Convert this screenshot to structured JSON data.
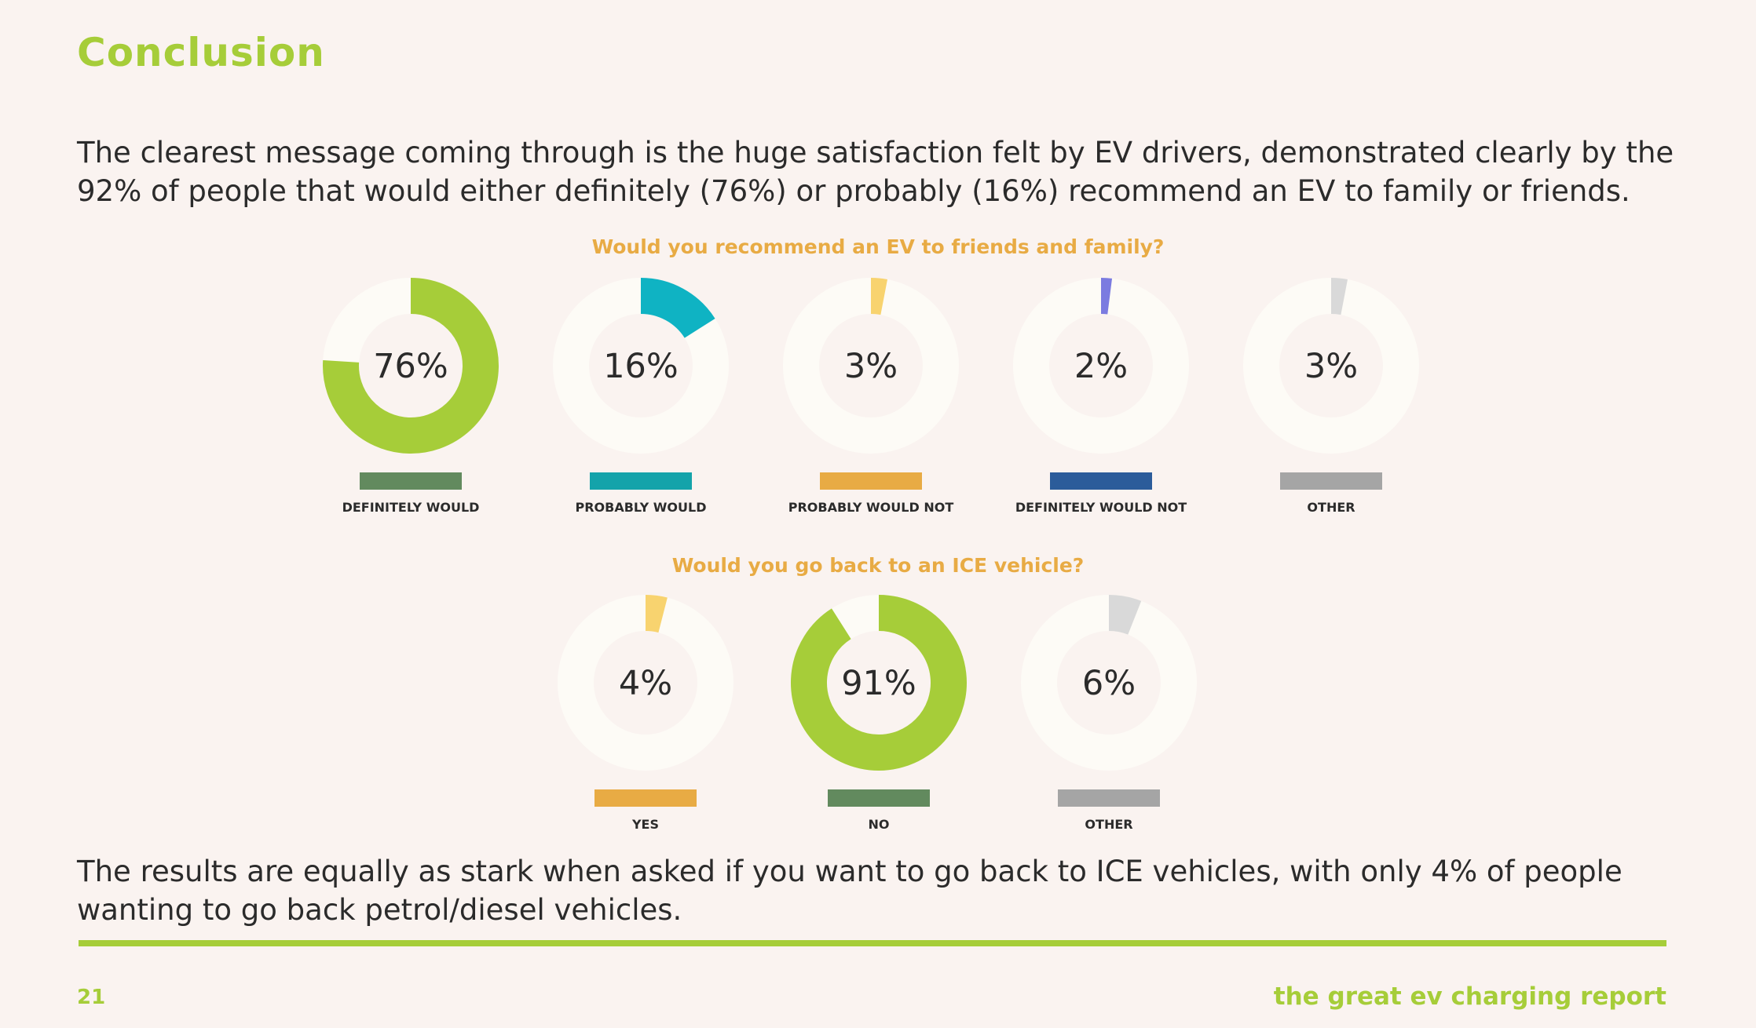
{
  "page": {
    "title": "Conclusion",
    "intro": "The clearest message coming through is the huge satisfaction felt by EV drivers, demonstrated clearly by the 92% of people that would either definitely (76%) or probably (16%) recommend an EV to family or friends.",
    "outro": "The results are equally as stark when asked if you want to go back to ICE vehicles, with only 4% of people wanting to go back petrol/diesel vehicles.",
    "page_number": "21",
    "report_name": "the great ev charging report"
  },
  "colors": {
    "accent_green": "#a6cd39",
    "heading_orange": "#e8ab44",
    "ring_track": "#fdfbf6"
  },
  "chart_data": [
    {
      "type": "pie",
      "title": "Would you recommend an EV to friends and family?",
      "categories": [
        "DEFINITELY WOULD",
        "PROBABLY WOULD",
        "PROBABLY WOULD NOT",
        "DEFINITELY WOULD NOT",
        "OTHER"
      ],
      "values": [
        76,
        16,
        3,
        2,
        3
      ],
      "labels": [
        "76%",
        "16%",
        "3%",
        "2%",
        "3%"
      ],
      "ring_colors": [
        "#a6cd39",
        "#0fb3c3",
        "#f8d36f",
        "#7b7be0",
        "#d9d9d9"
      ],
      "legend_colors": [
        "#628a5e",
        "#14a3aa",
        "#e8ab44",
        "#2b5c9a",
        "#a5a5a5"
      ]
    },
    {
      "type": "pie",
      "title": "Would you go back to an ICE vehicle?",
      "categories": [
        "YES",
        "NO",
        "OTHER"
      ],
      "values": [
        4,
        91,
        6
      ],
      "labels": [
        "4%",
        "91%",
        "6%"
      ],
      "ring_colors": [
        "#f8d36f",
        "#a6cd39",
        "#d9d9d9"
      ],
      "legend_colors": [
        "#e8ab44",
        "#628a5e",
        "#a5a5a5"
      ]
    }
  ]
}
